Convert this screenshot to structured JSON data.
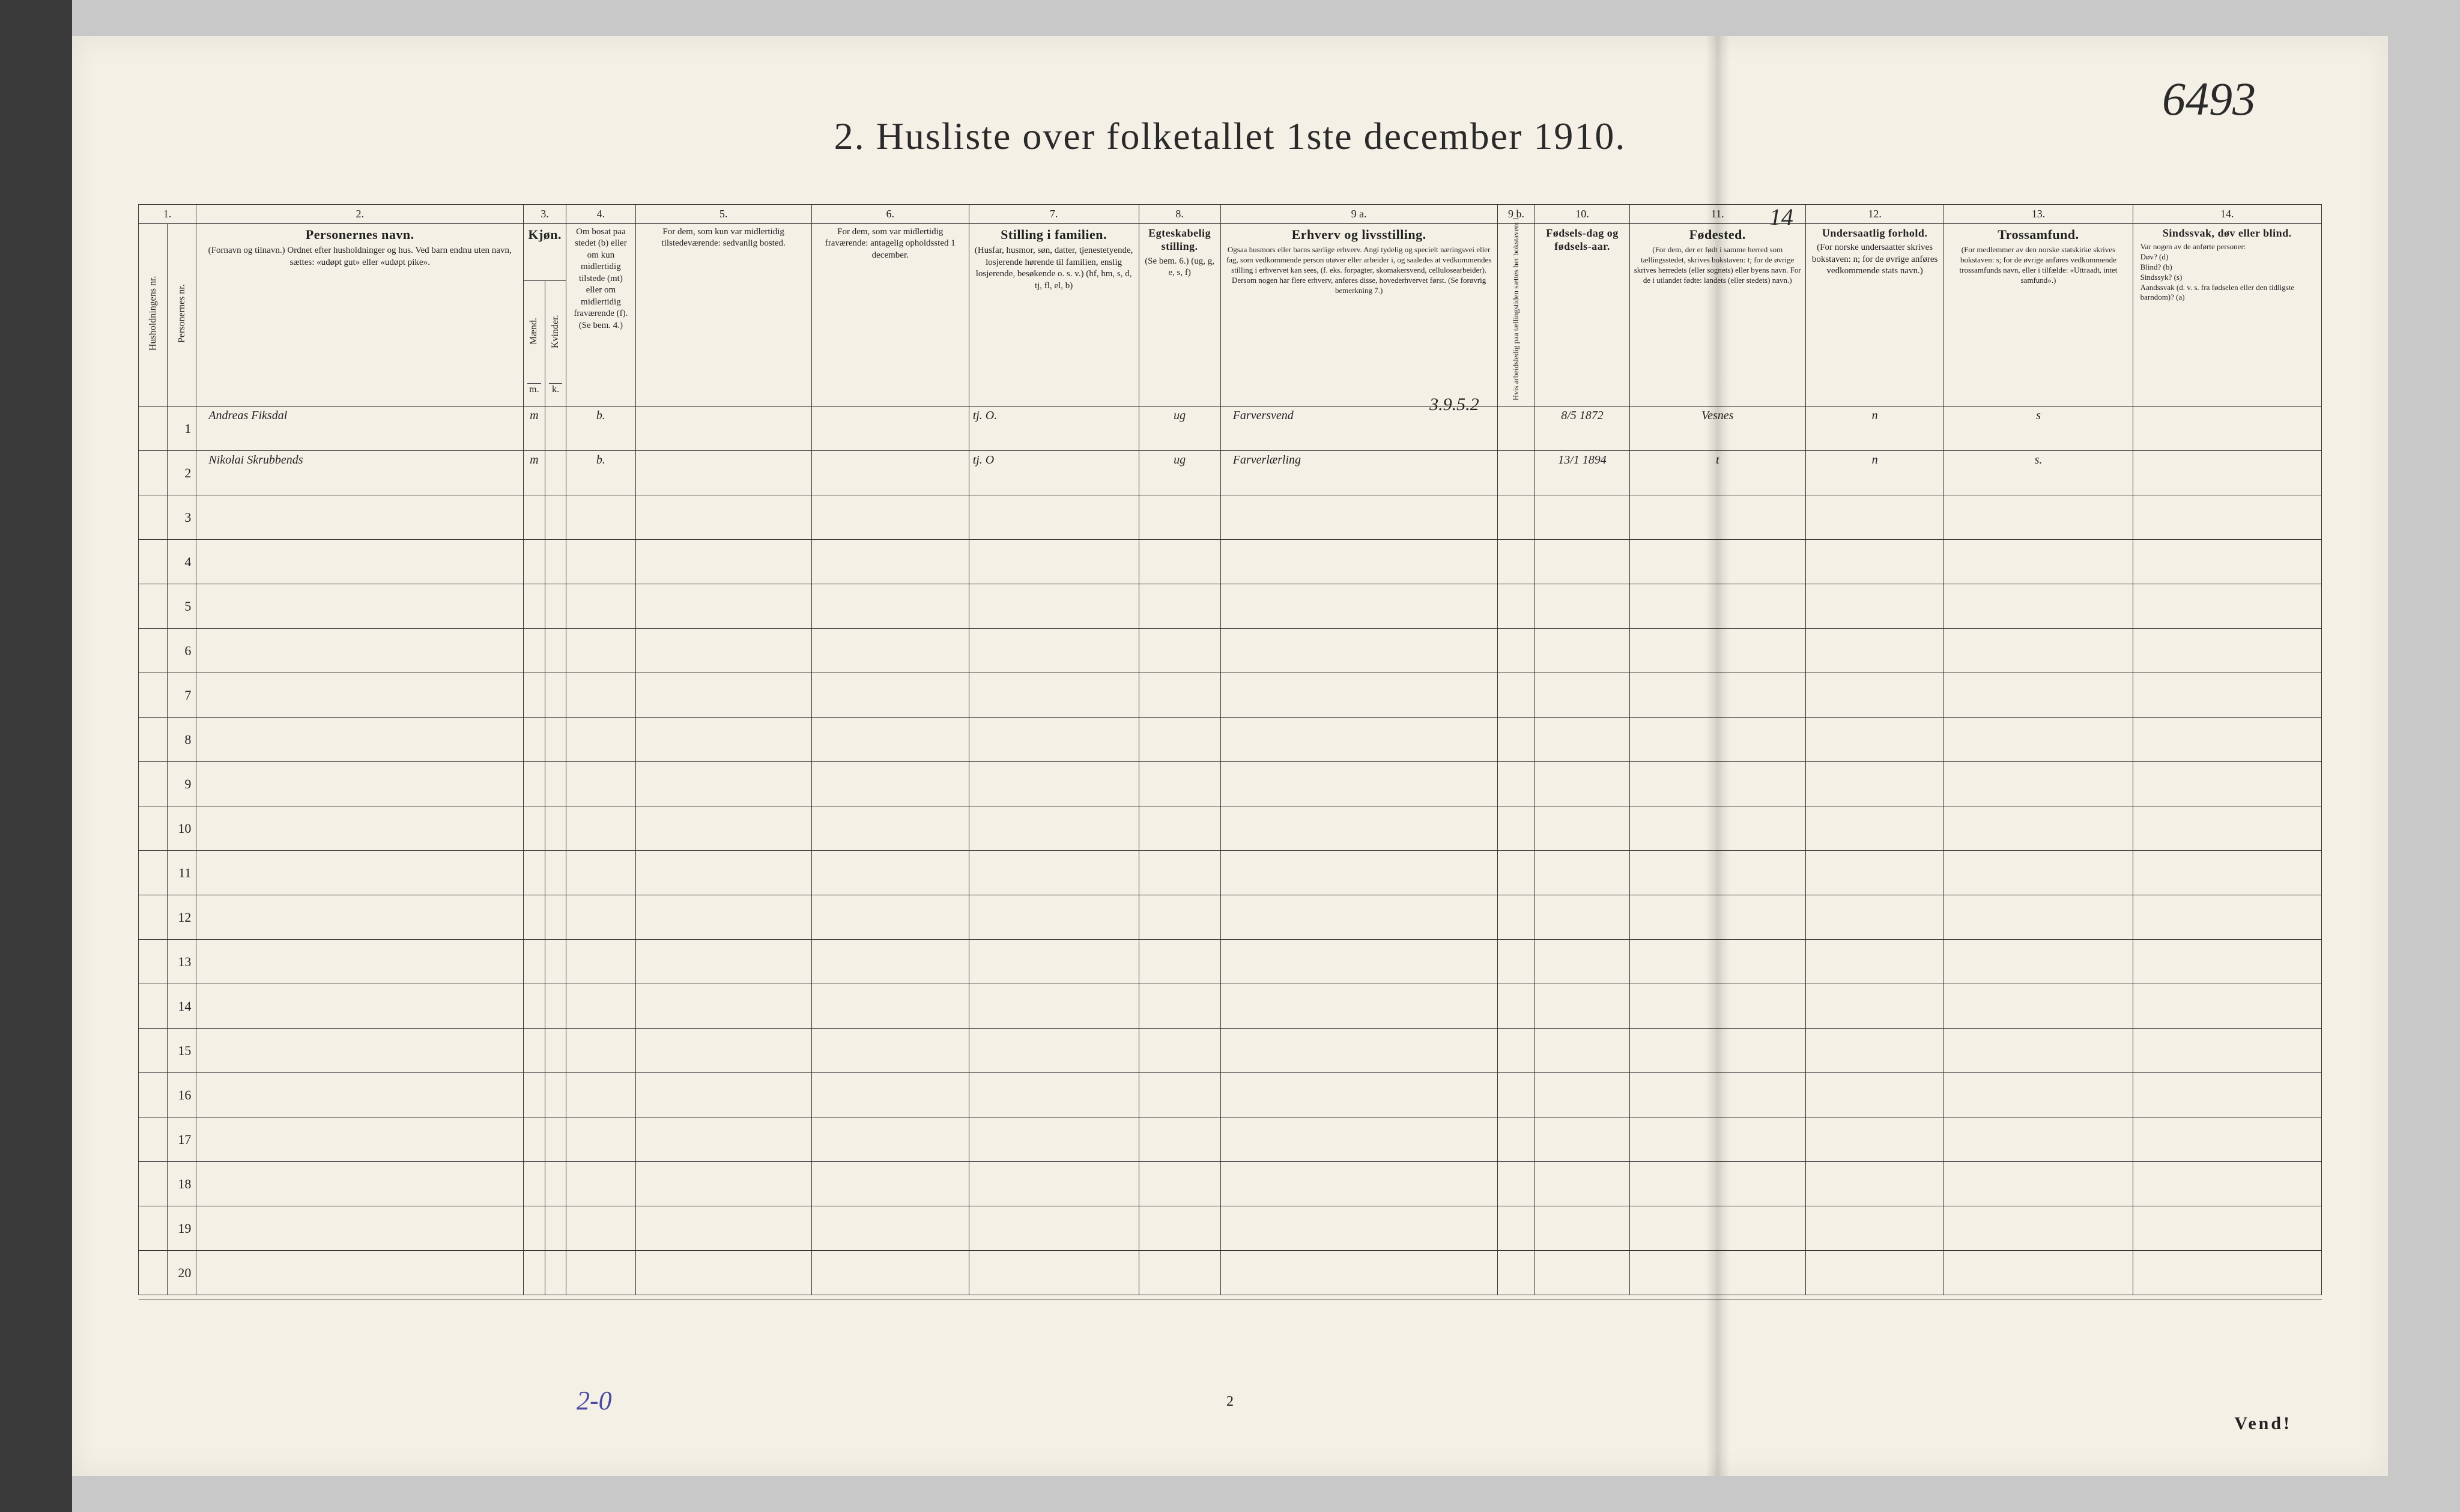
{
  "annotations": {
    "top_right": "6493",
    "above_col11": "14",
    "bottom_pencil": "2-0"
  },
  "title": "2.  Husliste over folketallet 1ste december 1910.",
  "footer": {
    "page_number": "2",
    "vend": "Vend!"
  },
  "columns": {
    "numbers": [
      "1.",
      "2.",
      "3.",
      "4.",
      "5.",
      "6.",
      "7.",
      "8.",
      "9 a.",
      "9 b.",
      "10.",
      "11.",
      "12.",
      "13.",
      "14."
    ],
    "h1": {
      "husholdning": "Husholdningens nr.",
      "person": "Personernes nr."
    },
    "h2_title": "Personernes navn.",
    "h2_sub": "(Fornavn og tilnavn.)\nOrdnet efter husholdninger og hus.\nVed barn endnu uten navn, sættes: «udøpt gut» eller «udøpt pike».",
    "h3_title": "Kjøn.",
    "h3_m": "Mænd.",
    "h3_k": "Kvinder.",
    "h3_mk": "m.  k.",
    "h4": "Om bosat paa stedet (b) eller om kun midlertidig tilstede (mt) eller om midlertidig fraværende (f). (Se bem. 4.)",
    "h5": "For dem, som kun var midlertidig tilstedeværende:\nsedvanlig bosted.",
    "h6": "For dem, som var midlertidig fraværende:\nantagelig opholdssted 1 december.",
    "h7_title": "Stilling i familien.",
    "h7_sub": "(Husfar, husmor, søn, datter, tjenestetyende, losjerende hørende til familien, enslig losjerende, besøkende o. s. v.)\n(hf, hm, s, d, tj, fl, el, b)",
    "h8_title": "Egteskabelig stilling.",
    "h8_sub": "(Se bem. 6.)\n(ug, g, e, s, f)",
    "h9a_title": "Erhverv og livsstilling.",
    "h9a_sub": "Ogsaa husmors eller barns særlige erhverv. Angi tydelig og specielt næringsvei eller fag, som vedkommende person utøver eller arbeider i, og saaledes at vedkommendes stilling i erhvervet kan sees, (f. eks. forpagter, skomakersvend, cellulosearbeider). Dersom nogen har flere erhverv, anføres disse, hovederhvervet først.\n(Se forøvrig bemerkning 7.)",
    "h9b": "Hvis arbeidsledig paa tællingstiden sættes her bokstaven: l.",
    "h10_title": "Fødsels-dag og fødsels-aar.",
    "h11_title": "Fødested.",
    "h11_sub": "(For dem, der er født i samme herred som tællingsstedet, skrives bokstaven: t; for de øvrige skrives herredets (eller sognets) eller byens navn. For de i utlandet fødte: landets (eller stedets) navn.)",
    "h12_title": "Undersaatlig forhold.",
    "h12_sub": "(For norske undersaatter skrives bokstaven: n; for de øvrige anføres vedkommende stats navn.)",
    "h13_title": "Trossamfund.",
    "h13_sub": "(For medlemmer av den norske statskirke skrives bokstaven: s; for de øvrige anføres vedkommende trossamfunds navn, eller i tilfælde: «Uttraadt, intet samfund».)",
    "h14_title": "Sindssvak, døv eller blind.",
    "h14_sub": "Var nogen av de anførte personer:\nDøv?      (d)\nBlind?    (b)\nSindssyk? (s)\nAandssvak (d. v. s. fra fødselen eller den tidligste barndom)? (a)"
  },
  "extra_note_row1": "3.9.5.2",
  "rows": [
    {
      "num": "1",
      "name": "Andreas Fiksdal",
      "sex_m": "m",
      "sex_k": "",
      "col4": "b.",
      "col5": "",
      "col6": "",
      "col7": "tj.       O.",
      "col8": "ug",
      "col9a": "Farversvend",
      "col9b": "",
      "col10": "8/5 1872",
      "col11": "Vesnes",
      "col12": "n",
      "col13": "s",
      "col14": ""
    },
    {
      "num": "2",
      "name": "Nikolai Skrubbends",
      "sex_m": "m",
      "sex_k": "",
      "col4": "b.",
      "col5": "",
      "col6": "",
      "col7": "tj.       O",
      "col8": "ug",
      "col9a": "Farverlærling",
      "col9b": "",
      "col10": "13/1 1894",
      "col11": "t",
      "col12": "n",
      "col13": "s.",
      "col14": ""
    },
    {
      "num": "3"
    },
    {
      "num": "4"
    },
    {
      "num": "5"
    },
    {
      "num": "6"
    },
    {
      "num": "7"
    },
    {
      "num": "8"
    },
    {
      "num": "9"
    },
    {
      "num": "10"
    },
    {
      "num": "11"
    },
    {
      "num": "12"
    },
    {
      "num": "13"
    },
    {
      "num": "14"
    },
    {
      "num": "15"
    },
    {
      "num": "16"
    },
    {
      "num": "17"
    },
    {
      "num": "18"
    },
    {
      "num": "19"
    },
    {
      "num": "20"
    }
  ],
  "colors": {
    "paper": "#f4f0e6",
    "ink": "#2a2a2a",
    "handwriting": "#3a352a",
    "pencil_blue": "#4a4aa0",
    "background": "#c8c8c8",
    "strip": "#3a3a3a"
  }
}
